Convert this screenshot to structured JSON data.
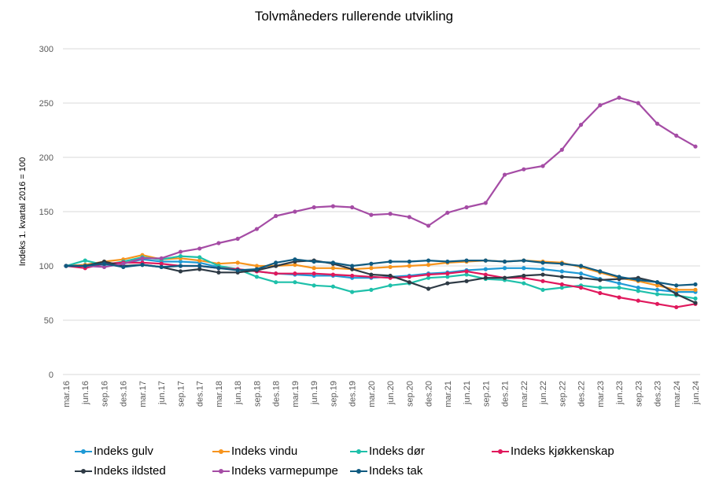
{
  "chart_data": {
    "type": "line",
    "title": "Tolvmåneders rullerende utvikling",
    "xlabel": "",
    "ylabel": "Indeks 1. kvartal 2016 = 100",
    "ylim": [
      0,
      300
    ],
    "yticks": [
      "0",
      "50",
      "100",
      "150",
      "200",
      "250",
      "300"
    ],
    "grid": true,
    "legend_position": "bottom",
    "categories": [
      "mar.16",
      "jun.16",
      "sep.16",
      "des.16",
      "mar.17",
      "jun.17",
      "sep.17",
      "des.17",
      "mar.18",
      "jun.18",
      "sep.18",
      "des.18",
      "mar.19",
      "jun.19",
      "sep.19",
      "des.19",
      "mar.20",
      "jun.20",
      "sep.20",
      "des.20",
      "mar.21",
      "jun.21",
      "sep.21",
      "des.21",
      "mar.22",
      "jun.22",
      "sep.22",
      "des.22",
      "mar.23",
      "jun.23",
      "sep.23",
      "des.23",
      "mar.24",
      "jun.24"
    ],
    "series": [
      {
        "name": "Indeks gulv",
        "color": "#1f9ad6",
        "values": [
          100,
          101,
          101,
          102,
          106,
          104,
          104,
          103,
          99,
          97,
          95,
          93,
          92,
          91,
          91,
          89,
          89,
          90,
          91,
          93,
          94,
          96,
          97,
          98,
          98,
          97,
          95,
          93,
          88,
          84,
          80,
          78,
          76,
          76
        ]
      },
      {
        "name": "Indeks vindu",
        "color": "#f7941d",
        "values": [
          100,
          101,
          104,
          106,
          110,
          106,
          107,
          105,
          102,
          103,
          100,
          100,
          101,
          98,
          98,
          97,
          98,
          99,
          100,
          101,
          103,
          104,
          105,
          104,
          105,
          104,
          103,
          99,
          94,
          89,
          86,
          82,
          78,
          78
        ]
      },
      {
        "name": "Indeks dør",
        "color": "#1ec0aa",
        "values": [
          100,
          105,
          101,
          104,
          108,
          106,
          109,
          108,
          100,
          97,
          90,
          85,
          85,
          82,
          81,
          76,
          78,
          82,
          84,
          89,
          90,
          92,
          88,
          87,
          84,
          78,
          80,
          82,
          80,
          80,
          77,
          74,
          73,
          70
        ]
      },
      {
        "name": "Indeks kjøkkenskap",
        "color": "#e0185c",
        "values": [
          100,
          98,
          102,
          103,
          103,
          102,
          100,
          100,
          98,
          97,
          95,
          93,
          93,
          93,
          92,
          91,
          90,
          89,
          90,
          92,
          93,
          95,
          92,
          89,
          89,
          86,
          83,
          80,
          75,
          71,
          68,
          65,
          62,
          65
        ]
      },
      {
        "name": "Indeks ildsted",
        "color": "#2e3a45",
        "values": [
          100,
          100,
          104,
          100,
          101,
          99,
          95,
          97,
          94,
          94,
          96,
          100,
          104,
          105,
          102,
          97,
          92,
          91,
          85,
          79,
          84,
          86,
          89,
          89,
          91,
          92,
          90,
          89,
          87,
          88,
          89,
          85,
          74,
          66
        ]
      },
      {
        "name": "Indeks varmepumpe",
        "color": "#a54ca5",
        "values": [
          100,
          100,
          99,
          102,
          107,
          107,
          113,
          116,
          121,
          125,
          134,
          146,
          150,
          154,
          155,
          154,
          147,
          148,
          145,
          137,
          149,
          154,
          158,
          184,
          189,
          192,
          207,
          230,
          248,
          255,
          250,
          231,
          220,
          210
        ]
      },
      {
        "name": "Indeks tak",
        "color": "#0f5a80",
        "values": [
          100,
          100,
          102,
          99,
          101,
          99,
          100,
          100,
          98,
          96,
          97,
          103,
          106,
          104,
          103,
          100,
          102,
          104,
          104,
          105,
          104,
          105,
          105,
          104,
          105,
          103,
          102,
          100,
          95,
          90,
          87,
          85,
          82,
          83
        ]
      }
    ]
  },
  "legend": [
    {
      "label": "Indeks gulv",
      "color": "#1f9ad6"
    },
    {
      "label": "Indeks vindu",
      "color": "#f7941d"
    },
    {
      "label": "Indeks dør",
      "color": "#1ec0aa"
    },
    {
      "label": "Indeks kjøkkenskap",
      "color": "#e0185c"
    },
    {
      "label": "Indeks ildsted",
      "color": "#2e3a45"
    },
    {
      "label": "Indeks varmepumpe",
      "color": "#a54ca5"
    },
    {
      "label": "Indeks tak",
      "color": "#0f5a80"
    }
  ]
}
